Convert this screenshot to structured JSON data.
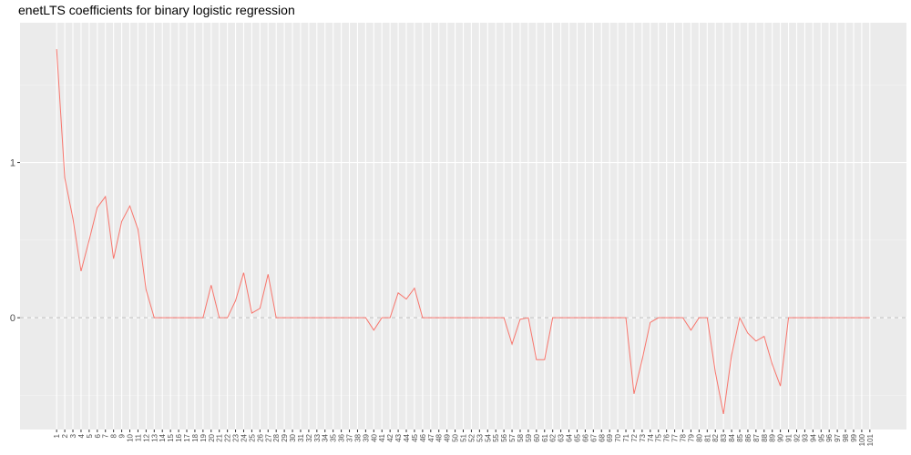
{
  "chart_data": {
    "type": "line",
    "title": "enetLTS coefficients for binary logistic regression",
    "xlabel": "",
    "ylabel": "",
    "x": [
      1,
      2,
      3,
      4,
      5,
      6,
      7,
      8,
      9,
      10,
      11,
      12,
      13,
      14,
      15,
      16,
      17,
      18,
      19,
      20,
      21,
      22,
      23,
      24,
      25,
      26,
      27,
      28,
      29,
      30,
      31,
      32,
      33,
      34,
      35,
      36,
      37,
      38,
      39,
      40,
      41,
      42,
      43,
      44,
      45,
      46,
      47,
      48,
      49,
      50,
      51,
      52,
      53,
      54,
      55,
      56,
      57,
      58,
      59,
      60,
      61,
      62,
      63,
      64,
      65,
      66,
      67,
      68,
      69,
      70,
      71,
      72,
      73,
      74,
      75,
      76,
      77,
      78,
      79,
      80,
      81,
      82,
      83,
      84,
      85,
      86,
      87,
      88,
      89,
      90,
      91,
      92,
      93,
      94,
      95,
      96,
      97,
      98,
      99,
      100,
      101
    ],
    "x_tick_labels": [
      "1",
      "2",
      "3",
      "4",
      "5",
      "6",
      "7",
      "8",
      "9",
      "10",
      "11",
      "12",
      "13",
      "14",
      "15",
      "16",
      "17",
      "18",
      "19",
      "20",
      "21",
      "22",
      "23",
      "24",
      "25",
      "26",
      "27",
      "28",
      "29",
      "30",
      "31",
      "32",
      "33",
      "34",
      "35",
      "36",
      "37",
      "38",
      "39",
      "40",
      "41",
      "42",
      "43",
      "44",
      "45",
      "46",
      "47",
      "48",
      "49",
      "50",
      "51",
      "52",
      "53",
      "54",
      "55",
      "56",
      "57",
      "58",
      "59",
      "60",
      "61",
      "62",
      "63",
      "64",
      "65",
      "66",
      "67",
      "68",
      "69",
      "70",
      "71",
      "72",
      "73",
      "74",
      "75",
      "76",
      "77",
      "78",
      "79",
      "80",
      "81",
      "82",
      "83",
      "84",
      "85",
      "86",
      "87",
      "88",
      "89",
      "90",
      "91",
      "92",
      "93",
      "94",
      "95",
      "96",
      "97",
      "98",
      "99",
      "100",
      "101"
    ],
    "y_ticks": [
      0,
      1
    ],
    "y_tick_labels": [
      "0",
      "1"
    ],
    "ylim": [
      -0.72,
      1.9
    ],
    "reference_line": 0,
    "grid": true,
    "series": [
      {
        "color": "#F8766D",
        "values": [
          1.73,
          0.9,
          0.64,
          0.3,
          0.5,
          0.71,
          0.78,
          0.38,
          0.62,
          0.72,
          0.57,
          0.18,
          0,
          0,
          0,
          0,
          0,
          0,
          0,
          0.21,
          0,
          0,
          0.11,
          0.29,
          0.03,
          0.06,
          0.28,
          0,
          0,
          0,
          0,
          0,
          0,
          0,
          0,
          0,
          0,
          0,
          0,
          -0.08,
          0,
          0,
          0.16,
          0.12,
          0.19,
          0,
          0,
          0,
          0,
          0,
          0,
          0,
          0,
          0,
          0,
          0,
          -0.17,
          -0.01,
          0,
          -0.27,
          -0.27,
          0,
          0,
          0,
          0,
          0,
          0,
          0,
          0,
          0,
          0,
          -0.49,
          -0.27,
          -0.03,
          0,
          0,
          0,
          0,
          -0.08,
          0,
          0,
          -0.35,
          -0.62,
          -0.24,
          0,
          -0.1,
          -0.15,
          -0.12,
          -0.3,
          -0.44,
          0,
          0,
          0,
          0,
          0,
          0,
          0,
          0,
          0,
          0,
          0
        ]
      }
    ]
  }
}
